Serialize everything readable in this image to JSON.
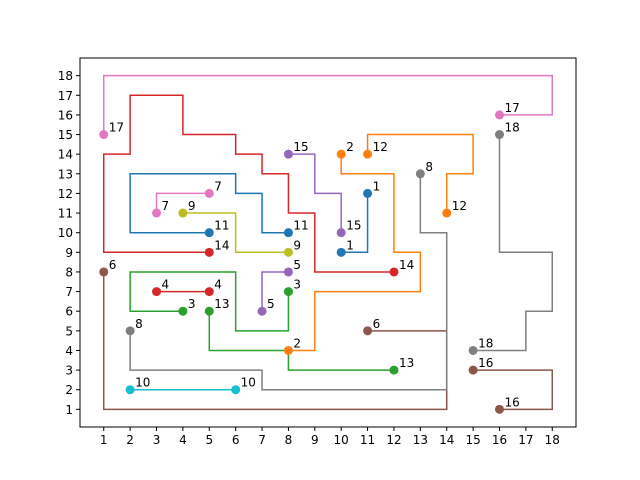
{
  "chart_data": {
    "type": "line",
    "xlim": [
      0.1,
      18.9
    ],
    "ylim": [
      0.1,
      18.9
    ],
    "xticks": [
      1,
      2,
      3,
      4,
      5,
      6,
      7,
      8,
      9,
      10,
      11,
      12,
      13,
      14,
      15,
      16,
      17,
      18
    ],
    "yticks": [
      1,
      2,
      3,
      4,
      5,
      6,
      7,
      8,
      9,
      10,
      11,
      12,
      13,
      14,
      15,
      16,
      17,
      18
    ],
    "grid": false,
    "series": [
      {
        "name": "1",
        "color": "#1f77b4",
        "points": [
          [
            10,
            9
          ],
          [
            11,
            9
          ],
          [
            11,
            12
          ]
        ],
        "pins": [
          {
            "label": "1",
            "x": 10,
            "y": 9
          },
          {
            "label": "1",
            "x": 11,
            "y": 12
          }
        ]
      },
      {
        "name": "2",
        "color": "#ff7f0e",
        "points": [
          [
            8,
            4
          ],
          [
            9,
            4
          ],
          [
            9,
            7
          ],
          [
            13,
            7
          ],
          [
            13,
            9
          ],
          [
            12,
            9
          ],
          [
            12,
            13
          ],
          [
            10,
            13
          ],
          [
            10,
            14
          ]
        ],
        "pins": [
          {
            "label": "2",
            "x": 8,
            "y": 4
          },
          {
            "label": "2",
            "x": 10,
            "y": 14
          }
        ]
      },
      {
        "name": "3",
        "color": "#2ca02c",
        "points": [
          [
            4,
            6
          ],
          [
            2,
            6
          ],
          [
            2,
            8
          ],
          [
            6,
            8
          ],
          [
            6,
            5
          ],
          [
            8,
            5
          ],
          [
            8,
            7
          ]
        ],
        "pins": [
          {
            "label": "3",
            "x": 4,
            "y": 6
          },
          {
            "label": "3",
            "x": 8,
            "y": 7
          }
        ]
      },
      {
        "name": "4",
        "color": "#d62728",
        "points": [
          [
            3,
            7
          ],
          [
            5,
            7
          ]
        ],
        "pins": [
          {
            "label": "4",
            "x": 3,
            "y": 7
          },
          {
            "label": "4",
            "x": 5,
            "y": 7
          }
        ]
      },
      {
        "name": "5",
        "color": "#9467bd",
        "points": [
          [
            7,
            6
          ],
          [
            7,
            8
          ],
          [
            8,
            8
          ]
        ],
        "pins": [
          {
            "label": "5",
            "x": 7,
            "y": 6
          },
          {
            "label": "5",
            "x": 8,
            "y": 8
          }
        ]
      },
      {
        "name": "6",
        "color": "#8c564b",
        "points": [
          [
            1,
            8
          ],
          [
            1,
            1
          ],
          [
            14,
            1
          ],
          [
            14,
            5
          ],
          [
            11,
            5
          ]
        ],
        "pins": [
          {
            "label": "6",
            "x": 1,
            "y": 8
          },
          {
            "label": "6",
            "x": 11,
            "y": 5
          }
        ]
      },
      {
        "name": "7",
        "color": "#e377c2",
        "points": [
          [
            3,
            11
          ],
          [
            3,
            12
          ],
          [
            5,
            12
          ]
        ],
        "pins": [
          {
            "label": "7",
            "x": 3,
            "y": 11
          },
          {
            "label": "7",
            "x": 5,
            "y": 12
          }
        ]
      },
      {
        "name": "8",
        "color": "#7f7f7f",
        "points": [
          [
            2,
            5
          ],
          [
            2,
            3
          ],
          [
            7,
            3
          ],
          [
            7,
            2
          ],
          [
            14,
            2
          ],
          [
            14,
            10
          ],
          [
            13,
            10
          ],
          [
            13,
            13
          ]
        ],
        "pins": [
          {
            "label": "8",
            "x": 2,
            "y": 5
          },
          {
            "label": "8",
            "x": 13,
            "y": 13
          }
        ]
      },
      {
        "name": "9",
        "color": "#bcbd22",
        "points": [
          [
            4,
            11
          ],
          [
            6,
            11
          ],
          [
            6,
            9
          ],
          [
            8,
            9
          ]
        ],
        "pins": [
          {
            "label": "9",
            "x": 4,
            "y": 11
          },
          {
            "label": "9",
            "x": 8,
            "y": 9
          }
        ]
      },
      {
        "name": "10",
        "color": "#17becf",
        "points": [
          [
            2,
            2
          ],
          [
            6,
            2
          ]
        ],
        "pins": [
          {
            "label": "10",
            "x": 2,
            "y": 2
          },
          {
            "label": "10",
            "x": 6,
            "y": 2
          }
        ]
      },
      {
        "name": "11",
        "color": "#1f77b4",
        "points": [
          [
            5,
            10
          ],
          [
            2,
            10
          ],
          [
            2,
            13
          ],
          [
            6,
            13
          ],
          [
            6,
            12
          ],
          [
            7,
            12
          ],
          [
            7,
            10
          ],
          [
            8,
            10
          ]
        ],
        "pins": [
          {
            "label": "11",
            "x": 5,
            "y": 10
          },
          {
            "label": "11",
            "x": 8,
            "y": 10
          }
        ]
      },
      {
        "name": "12",
        "color": "#ff7f0e",
        "points": [
          [
            11,
            14
          ],
          [
            11,
            15
          ],
          [
            15,
            15
          ],
          [
            15,
            13
          ],
          [
            14,
            13
          ],
          [
            14,
            11
          ]
        ],
        "pins": [
          {
            "label": "12",
            "x": 11,
            "y": 14
          },
          {
            "label": "12",
            "x": 14,
            "y": 11
          }
        ]
      },
      {
        "name": "13",
        "color": "#2ca02c",
        "points": [
          [
            5,
            6
          ],
          [
            5,
            4
          ],
          [
            8,
            4
          ],
          [
            8,
            3
          ],
          [
            12,
            3
          ]
        ],
        "pins": [
          {
            "label": "13",
            "x": 5,
            "y": 6
          },
          {
            "label": "13",
            "x": 12,
            "y": 3
          }
        ]
      },
      {
        "name": "14",
        "color": "#d62728",
        "points": [
          [
            5,
            9
          ],
          [
            1,
            9
          ],
          [
            1,
            14
          ],
          [
            2,
            14
          ],
          [
            2,
            17
          ],
          [
            4,
            17
          ],
          [
            4,
            15
          ],
          [
            6,
            15
          ],
          [
            6,
            14
          ],
          [
            7,
            14
          ],
          [
            7,
            13
          ],
          [
            8,
            13
          ],
          [
            8,
            11
          ],
          [
            9,
            11
          ],
          [
            9,
            8
          ],
          [
            12,
            8
          ]
        ],
        "pins": [
          {
            "label": "14",
            "x": 5,
            "y": 9
          },
          {
            "label": "14",
            "x": 12,
            "y": 8
          }
        ]
      },
      {
        "name": "15",
        "color": "#9467bd",
        "points": [
          [
            8,
            14
          ],
          [
            9,
            14
          ],
          [
            9,
            12
          ],
          [
            10,
            12
          ],
          [
            10,
            10
          ]
        ],
        "pins": [
          {
            "label": "15",
            "x": 8,
            "y": 14
          },
          {
            "label": "15",
            "x": 10,
            "y": 10
          }
        ]
      },
      {
        "name": "16",
        "color": "#8c564b",
        "points": [
          [
            15,
            3
          ],
          [
            18,
            3
          ],
          [
            18,
            1
          ],
          [
            16,
            1
          ]
        ],
        "pins": [
          {
            "label": "16",
            "x": 15,
            "y": 3
          },
          {
            "label": "16",
            "x": 16,
            "y": 1
          }
        ]
      },
      {
        "name": "17",
        "color": "#e377c2",
        "points": [
          [
            1,
            15
          ],
          [
            1,
            18
          ],
          [
            18,
            18
          ],
          [
            18,
            16
          ],
          [
            16,
            16
          ]
        ],
        "pins": [
          {
            "label": "17",
            "x": 1,
            "y": 15
          },
          {
            "label": "17",
            "x": 16,
            "y": 16
          }
        ]
      },
      {
        "name": "18",
        "color": "#7f7f7f",
        "points": [
          [
            16,
            15
          ],
          [
            16,
            9
          ],
          [
            18,
            9
          ],
          [
            18,
            6
          ],
          [
            17,
            6
          ],
          [
            17,
            4
          ],
          [
            15,
            4
          ]
        ],
        "pins": [
          {
            "label": "18",
            "x": 16,
            "y": 15
          },
          {
            "label": "18",
            "x": 15,
            "y": 4
          }
        ]
      }
    ]
  }
}
